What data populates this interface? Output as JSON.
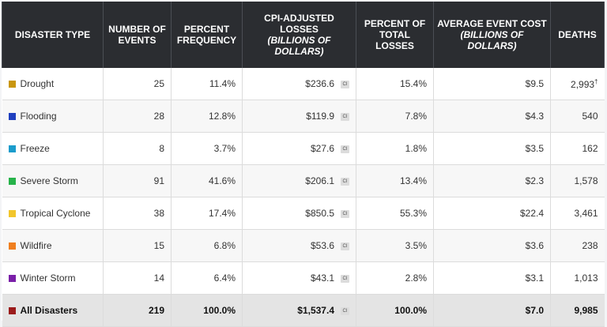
{
  "headers": {
    "type": "DISASTER TYPE",
    "events": "NUMBER OF EVENTS",
    "freq": "PERCENT FREQUENCY",
    "losses": "CPI-ADJUSTED LOSSES",
    "losses_sub": "(BILLIONS OF DOLLARS)",
    "pct_losses": "PERCENT OF TOTAL LOSSES",
    "avg_cost": "AVERAGE EVENT COST",
    "avg_cost_sub": "(BILLIONS OF DOLLARS)",
    "deaths": "DEATHS"
  },
  "rows": [
    {
      "type": "Drought",
      "color": "#c9960e",
      "events": "25",
      "freq": "11.4%",
      "losses": "$236.6",
      "ci": "CI",
      "pct": "15.4%",
      "avg": "$9.5",
      "deaths": "2,993",
      "mark": "†"
    },
    {
      "type": "Flooding",
      "color": "#1f3fbf",
      "events": "28",
      "freq": "12.8%",
      "losses": "$119.9",
      "ci": "CI",
      "pct": "7.8%",
      "avg": "$4.3",
      "deaths": "540",
      "mark": ""
    },
    {
      "type": "Freeze",
      "color": "#1a9ccc",
      "events": "8",
      "freq": "3.7%",
      "losses": "$27.6",
      "ci": "CI",
      "pct": "1.8%",
      "avg": "$3.5",
      "deaths": "162",
      "mark": ""
    },
    {
      "type": "Severe Storm",
      "color": "#27b34a",
      "events": "91",
      "freq": "41.6%",
      "losses": "$206.1",
      "ci": "CI",
      "pct": "13.4%",
      "avg": "$2.3",
      "deaths": "1,578",
      "mark": ""
    },
    {
      "type": "Tropical Cyclone",
      "color": "#f2c62c",
      "events": "38",
      "freq": "17.4%",
      "losses": "$850.5",
      "ci": "CI",
      "pct": "55.3%",
      "avg": "$22.4",
      "deaths": "3,461",
      "mark": ""
    },
    {
      "type": "Wildfire",
      "color": "#f07f1e",
      "events": "15",
      "freq": "6.8%",
      "losses": "$53.6",
      "ci": "CI",
      "pct": "3.5%",
      "avg": "$3.6",
      "deaths": "238",
      "mark": ""
    },
    {
      "type": "Winter Storm",
      "color": "#7a1fa8",
      "events": "14",
      "freq": "6.4%",
      "losses": "$43.1",
      "ci": "CI",
      "pct": "2.8%",
      "avg": "$3.1",
      "deaths": "1,013",
      "mark": ""
    }
  ],
  "total": {
    "type": "All Disasters",
    "color": "#9b1b1b",
    "events": "219",
    "freq": "100.0%",
    "losses": "$1,537.4",
    "ci": "CI",
    "pct": "100.0%",
    "avg": "$7.0",
    "deaths": "9,985"
  }
}
